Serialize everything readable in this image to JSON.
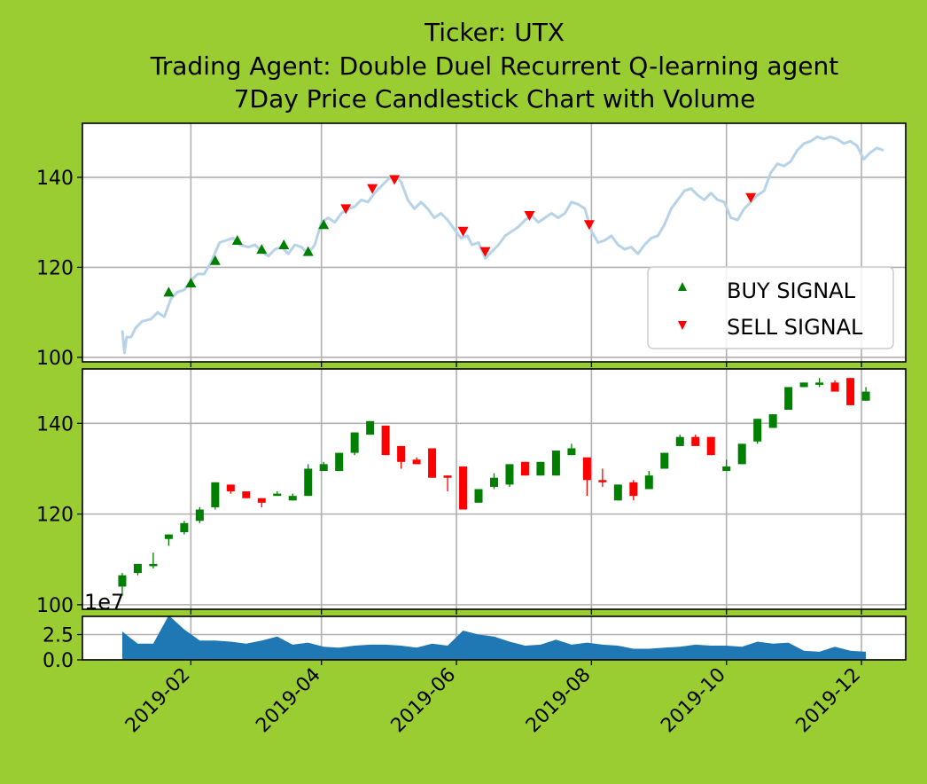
{
  "figure": {
    "background": "#9acd32",
    "title_lines": [
      "Ticker: UTX",
      "Trading Agent: Double Duel Recurrent Q-learning agent",
      "7Day Price Candlestick Chart with Volume"
    ]
  },
  "chart_data": [
    {
      "type": "line",
      "panel": "price",
      "grid": true,
      "ylim": [
        99,
        152
      ],
      "yticks": [
        "100",
        "120",
        "140"
      ],
      "x_range": [
        "2018-12-14",
        "2019-12-21"
      ],
      "legend": {
        "placement": "lower-right",
        "entries": [
          {
            "label": "BUY SIGNAL",
            "marker": "triangle-up",
            "color": "#008000"
          },
          {
            "label": "SELL SIGNAL",
            "marker": "triangle-down",
            "color": "#ff0000"
          }
        ]
      },
      "line_color": "#b7d3e8",
      "price_series": [
        [
          "2019-01-01",
          106
        ],
        [
          "2019-01-02",
          101
        ],
        [
          "2019-01-03",
          104.5
        ],
        [
          "2019-01-05",
          104.5
        ],
        [
          "2019-01-07",
          106.5
        ],
        [
          "2019-01-10",
          108
        ],
        [
          "2019-01-14",
          108.5
        ],
        [
          "2019-01-17",
          110
        ],
        [
          "2019-01-20",
          109
        ],
        [
          "2019-01-23",
          113
        ],
        [
          "2019-01-26",
          114.5
        ],
        [
          "2019-01-29",
          115
        ],
        [
          "2019-02-01",
          117
        ],
        [
          "2019-02-04",
          118.5
        ],
        [
          "2019-02-07",
          118.5
        ],
        [
          "2019-02-10",
          121
        ],
        [
          "2019-02-14",
          125.5
        ],
        [
          "2019-02-17",
          126
        ],
        [
          "2019-02-20",
          126.5
        ],
        [
          "2019-02-23",
          125
        ],
        [
          "2019-02-27",
          124.5
        ],
        [
          "2019-03-02",
          125
        ],
        [
          "2019-03-05",
          123.5
        ],
        [
          "2019-03-08",
          122.5
        ],
        [
          "2019-03-11",
          124
        ],
        [
          "2019-03-14",
          124.5
        ],
        [
          "2019-03-17",
          123
        ],
        [
          "2019-03-20",
          125
        ],
        [
          "2019-03-23",
          124.5
        ],
        [
          "2019-03-26",
          123
        ],
        [
          "2019-03-29",
          125
        ],
        [
          "2019-04-01",
          130
        ],
        [
          "2019-04-04",
          131
        ],
        [
          "2019-04-07",
          130
        ],
        [
          "2019-04-10",
          132
        ],
        [
          "2019-04-13",
          133
        ],
        [
          "2019-04-16",
          133.5
        ],
        [
          "2019-04-19",
          135
        ],
        [
          "2019-04-22",
          134.5
        ],
        [
          "2019-04-25",
          136.5
        ],
        [
          "2019-04-28",
          138
        ],
        [
          "2019-05-01",
          139.5
        ],
        [
          "2019-05-04",
          140.3
        ],
        [
          "2019-05-07",
          139
        ],
        [
          "2019-05-10",
          135
        ],
        [
          "2019-05-13",
          133
        ],
        [
          "2019-05-16",
          134.5
        ],
        [
          "2019-05-19",
          133
        ],
        [
          "2019-05-22",
          131
        ],
        [
          "2019-05-25",
          132
        ],
        [
          "2019-05-28",
          130.5
        ],
        [
          "2019-05-31",
          128.5
        ],
        [
          "2019-06-03",
          126.5
        ],
        [
          "2019-06-06",
          127
        ],
        [
          "2019-06-08",
          125
        ],
        [
          "2019-06-11",
          125.5
        ],
        [
          "2019-06-14",
          122
        ],
        [
          "2019-06-17",
          123.5
        ],
        [
          "2019-06-20",
          125
        ],
        [
          "2019-06-23",
          127
        ],
        [
          "2019-06-26",
          128
        ],
        [
          "2019-06-29",
          129
        ],
        [
          "2019-07-02",
          130.5
        ],
        [
          "2019-07-05",
          131.5
        ],
        [
          "2019-07-08",
          130
        ],
        [
          "2019-07-11",
          131
        ],
        [
          "2019-07-14",
          132
        ],
        [
          "2019-07-17",
          131
        ],
        [
          "2019-07-20",
          132
        ],
        [
          "2019-07-23",
          134.5
        ],
        [
          "2019-07-26",
          134
        ],
        [
          "2019-07-29",
          133
        ],
        [
          "2019-08-01",
          128
        ],
        [
          "2019-08-04",
          125.5
        ],
        [
          "2019-08-07",
          126
        ],
        [
          "2019-08-10",
          127
        ],
        [
          "2019-08-13",
          125
        ],
        [
          "2019-08-16",
          124
        ],
        [
          "2019-08-19",
          124.5
        ],
        [
          "2019-08-22",
          123
        ],
        [
          "2019-08-25",
          125
        ],
        [
          "2019-08-28",
          126.5
        ],
        [
          "2019-08-31",
          127
        ],
        [
          "2019-09-03",
          129.5
        ],
        [
          "2019-09-06",
          133
        ],
        [
          "2019-09-09",
          135
        ],
        [
          "2019-09-12",
          137
        ],
        [
          "2019-09-15",
          137.5
        ],
        [
          "2019-09-18",
          136
        ],
        [
          "2019-09-21",
          135
        ],
        [
          "2019-09-24",
          136.5
        ],
        [
          "2019-09-27",
          135
        ],
        [
          "2019-09-30",
          134.5
        ],
        [
          "2019-10-03",
          131
        ],
        [
          "2019-10-06",
          130.5
        ],
        [
          "2019-10-09",
          133
        ],
        [
          "2019-10-12",
          134.5
        ],
        [
          "2019-10-15",
          136
        ],
        [
          "2019-10-18",
          137
        ],
        [
          "2019-10-21",
          141
        ],
        [
          "2019-10-24",
          143
        ],
        [
          "2019-10-27",
          142.5
        ],
        [
          "2019-10-30",
          143.5
        ],
        [
          "2019-11-02",
          146
        ],
        [
          "2019-11-05",
          147.5
        ],
        [
          "2019-11-08",
          148
        ],
        [
          "2019-11-11",
          149
        ],
        [
          "2019-11-14",
          148.5
        ],
        [
          "2019-11-17",
          149
        ],
        [
          "2019-11-20",
          148.5
        ],
        [
          "2019-11-23",
          147.5
        ],
        [
          "2019-11-26",
          148
        ],
        [
          "2019-11-29",
          147
        ],
        [
          "2019-12-02",
          144
        ],
        [
          "2019-12-05",
          145.5
        ],
        [
          "2019-12-08",
          146.5
        ],
        [
          "2019-12-11",
          146
        ]
      ],
      "buy_signals": [
        [
          "2019-01-22",
          114.5
        ],
        [
          "2019-02-01",
          116.5
        ],
        [
          "2019-02-12",
          121.5
        ],
        [
          "2019-02-22",
          126
        ],
        [
          "2019-03-05",
          124
        ],
        [
          "2019-03-15",
          125
        ],
        [
          "2019-03-26",
          123.5
        ],
        [
          "2019-04-02",
          129.5
        ]
      ],
      "sell_signals": [
        [
          "2019-04-12",
          133
        ],
        [
          "2019-04-24",
          137.5
        ],
        [
          "2019-05-04",
          139.5
        ],
        [
          "2019-06-04",
          128
        ],
        [
          "2019-06-14",
          123.5
        ],
        [
          "2019-07-04",
          131.5
        ],
        [
          "2019-07-31",
          129.5
        ],
        [
          "2019-10-12",
          135.5
        ]
      ]
    },
    {
      "type": "candlestick",
      "panel": "candles",
      "grid": true,
      "ylim": [
        99,
        152
      ],
      "yticks": [
        "100",
        "120",
        "140"
      ],
      "up_color": "#008000",
      "down_color": "#ff0000",
      "candles": [
        [
          "2019-01-01",
          104,
          106.5,
          102,
          107
        ],
        [
          "2019-01-08",
          107,
          109,
          106.5,
          109
        ],
        [
          "2019-01-15",
          108.5,
          109,
          108,
          111.5
        ],
        [
          "2019-01-22",
          114.5,
          115.5,
          113,
          115.5
        ],
        [
          "2019-01-29",
          116,
          118,
          115.5,
          118.5
        ],
        [
          "2019-02-05",
          118.5,
          121,
          118,
          121.5
        ],
        [
          "2019-02-12",
          121.5,
          127,
          121,
          127
        ],
        [
          "2019-02-19",
          126.5,
          125,
          124.5,
          126.5
        ],
        [
          "2019-02-26",
          125,
          123.5,
          123.5,
          125
        ],
        [
          "2019-03-05",
          123.5,
          122.5,
          121.5,
          123.5
        ],
        [
          "2019-03-12",
          124,
          124.5,
          124,
          125
        ],
        [
          "2019-03-19",
          123,
          124,
          123,
          124.5
        ],
        [
          "2019-03-26",
          124,
          130,
          124,
          131
        ],
        [
          "2019-04-02",
          129.5,
          131,
          129.5,
          131.5
        ],
        [
          "2019-04-09",
          129.5,
          133.5,
          129.5,
          133.5
        ],
        [
          "2019-04-16",
          133.5,
          138,
          133,
          138
        ],
        [
          "2019-04-23",
          137.5,
          140.5,
          137.5,
          140.5
        ],
        [
          "2019-04-30",
          139.5,
          133,
          133,
          139.5
        ],
        [
          "2019-05-07",
          135,
          131.5,
          130,
          135
        ],
        [
          "2019-05-14",
          132,
          131,
          131,
          132.5
        ],
        [
          "2019-05-21",
          134.5,
          128,
          128,
          134.5
        ],
        [
          "2019-05-28",
          128.5,
          128,
          125,
          128.5
        ],
        [
          "2019-06-04",
          130.5,
          121,
          121,
          130.5
        ],
        [
          "2019-06-11",
          122.5,
          125.5,
          122.5,
          125.5
        ],
        [
          "2019-06-18",
          126,
          128,
          125.5,
          129
        ],
        [
          "2019-06-25",
          126.5,
          131,
          126,
          131
        ],
        [
          "2019-07-02",
          131.5,
          128.5,
          128.5,
          131.5
        ],
        [
          "2019-07-09",
          128.5,
          131.5,
          128.5,
          131.5
        ],
        [
          "2019-07-16",
          128.5,
          134,
          128.5,
          134
        ],
        [
          "2019-07-23",
          133,
          134.5,
          133,
          135.5
        ],
        [
          "2019-07-30",
          132.5,
          127.5,
          124,
          132.5
        ],
        [
          "2019-08-06",
          127.5,
          127,
          126,
          130
        ],
        [
          "2019-08-13",
          123,
          126.5,
          123,
          126.5
        ],
        [
          "2019-08-20",
          127,
          124,
          123,
          127.5
        ],
        [
          "2019-08-27",
          125.5,
          128.5,
          125.5,
          129.5
        ],
        [
          "2019-09-03",
          130,
          133.5,
          130,
          133.5
        ],
        [
          "2019-09-10",
          135,
          137,
          135,
          137.5
        ],
        [
          "2019-09-17",
          137,
          135,
          135,
          137.5
        ],
        [
          "2019-09-24",
          137,
          133,
          133,
          137
        ],
        [
          "2019-10-01",
          129.5,
          130.5,
          129.5,
          132
        ],
        [
          "2019-10-08",
          131,
          135.5,
          131,
          135.5
        ],
        [
          "2019-10-15",
          136,
          141,
          135.5,
          141
        ],
        [
          "2019-10-22",
          139,
          142,
          139,
          142
        ],
        [
          "2019-10-29",
          143,
          148,
          143,
          148
        ],
        [
          "2019-11-05",
          148,
          149,
          148,
          149
        ],
        [
          "2019-11-12",
          148.5,
          149,
          148,
          150
        ],
        [
          "2019-11-19",
          149,
          147,
          147,
          149.5
        ],
        [
          "2019-11-26",
          150,
          144,
          144,
          150
        ],
        [
          "2019-12-03",
          145,
          147,
          145,
          148
        ]
      ]
    },
    {
      "type": "area",
      "panel": "volume",
      "grid": true,
      "ylim": [
        0,
        4.3
      ],
      "yticks": [
        "0.0",
        "2.5"
      ],
      "offset_label": "1e7",
      "fill_color": "#1f77b4",
      "xticklabels": [
        "2019-02",
        "2019-04",
        "2019-06",
        "2019-08",
        "2019-10",
        "2019-12"
      ],
      "volume_1e7": [
        [
          "2019-01-01",
          2.8
        ],
        [
          "2019-01-08",
          1.6
        ],
        [
          "2019-01-15",
          1.6
        ],
        [
          "2019-01-22",
          4.4
        ],
        [
          "2019-01-29",
          3.0
        ],
        [
          "2019-02-05",
          1.9
        ],
        [
          "2019-02-12",
          1.9
        ],
        [
          "2019-02-19",
          1.8
        ],
        [
          "2019-02-26",
          1.6
        ],
        [
          "2019-03-05",
          1.9
        ],
        [
          "2019-03-12",
          2.3
        ],
        [
          "2019-03-19",
          1.5
        ],
        [
          "2019-03-26",
          1.7
        ],
        [
          "2019-04-02",
          1.3
        ],
        [
          "2019-04-09",
          1.2
        ],
        [
          "2019-04-16",
          1.4
        ],
        [
          "2019-04-23",
          1.5
        ],
        [
          "2019-04-30",
          1.5
        ],
        [
          "2019-05-07",
          1.4
        ],
        [
          "2019-05-14",
          1.2
        ],
        [
          "2019-05-21",
          1.6
        ],
        [
          "2019-05-28",
          1.4
        ],
        [
          "2019-06-04",
          2.9
        ],
        [
          "2019-06-11",
          2.5
        ],
        [
          "2019-06-18",
          2.3
        ],
        [
          "2019-06-25",
          1.8
        ],
        [
          "2019-07-02",
          1.4
        ],
        [
          "2019-07-09",
          1.5
        ],
        [
          "2019-07-16",
          2.0
        ],
        [
          "2019-07-23",
          1.5
        ],
        [
          "2019-07-30",
          1.7
        ],
        [
          "2019-08-06",
          1.5
        ],
        [
          "2019-08-13",
          1.4
        ],
        [
          "2019-08-20",
          1.1
        ],
        [
          "2019-08-27",
          1.1
        ],
        [
          "2019-09-03",
          1.2
        ],
        [
          "2019-09-10",
          1.3
        ],
        [
          "2019-09-17",
          1.5
        ],
        [
          "2019-09-24",
          1.4
        ],
        [
          "2019-10-01",
          1.4
        ],
        [
          "2019-10-08",
          1.3
        ],
        [
          "2019-10-15",
          1.8
        ],
        [
          "2019-10-22",
          1.6
        ],
        [
          "2019-10-29",
          1.7
        ],
        [
          "2019-11-05",
          0.9
        ],
        [
          "2019-11-12",
          0.8
        ],
        [
          "2019-11-19",
          1.3
        ],
        [
          "2019-11-26",
          0.9
        ],
        [
          "2019-12-03",
          0.8
        ]
      ]
    }
  ]
}
